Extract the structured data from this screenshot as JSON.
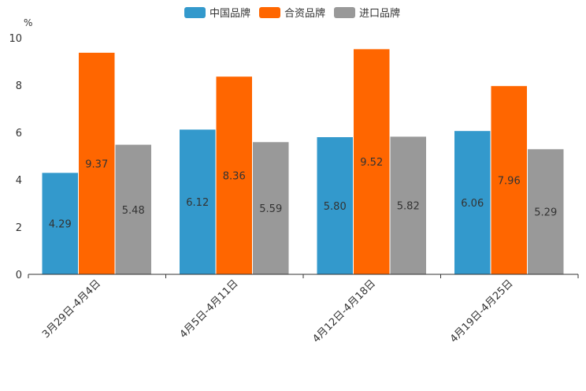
{
  "chart_data": {
    "type": "bar",
    "title": "",
    "xlabel": "",
    "ylabel": "%",
    "ylim": [
      0,
      10
    ],
    "yticks": [
      "0",
      "2",
      "4",
      "6",
      "8",
      "10"
    ],
    "categories": [
      "3月29日-4月4日",
      "4月5日-4月11日",
      "4月12日-4月18日",
      "4月19日-4月25日"
    ],
    "legend_position": "top-center",
    "series": [
      {
        "name": "中国品牌",
        "color": "#3399CC",
        "values": [
          4.29,
          6.12,
          5.8,
          6.06
        ],
        "labels": [
          "4.29",
          "6.12",
          "5.80",
          "6.06"
        ]
      },
      {
        "name": "合资品牌",
        "color": "#FF6600",
        "values": [
          9.37,
          8.36,
          9.52,
          7.96
        ],
        "labels": [
          "9.37",
          "8.36",
          "9.52",
          "7.96"
        ]
      },
      {
        "name": "进口品牌",
        "color": "#999999",
        "values": [
          5.48,
          5.59,
          5.82,
          5.29
        ],
        "labels": [
          "5.48",
          "5.59",
          "5.82",
          "5.29"
        ]
      }
    ]
  }
}
